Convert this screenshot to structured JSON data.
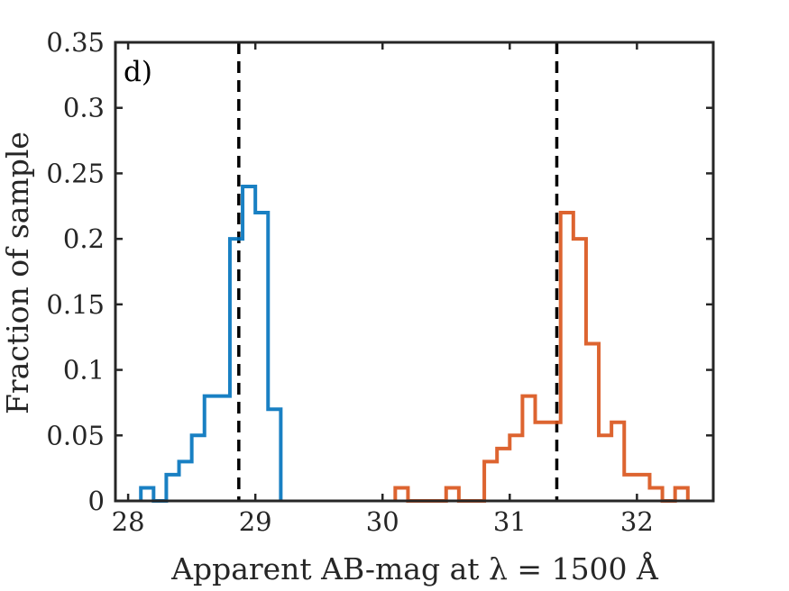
{
  "chart_data": {
    "type": "histogram",
    "panel_label": "d)",
    "xlabel": "Apparent AB-mag at λ = 1500 Å",
    "ylabel": "Fraction of sample",
    "xlim": [
      27.9,
      32.6
    ],
    "ylim": [
      0,
      0.35
    ],
    "xticks": [
      28,
      29,
      30,
      31,
      32
    ],
    "xtick_labels": [
      "28",
      "29",
      "30",
      "31",
      "32"
    ],
    "yticks": [
      0,
      0.05,
      0.1,
      0.15,
      0.2,
      0.25,
      0.3,
      0.35
    ],
    "ytick_labels": [
      "0",
      "0.05",
      "0.1",
      "0.15",
      "0.2",
      "0.25",
      "0.3",
      "0.35"
    ],
    "bin_width": 0.1,
    "series": [
      {
        "name": "blue",
        "color": "#0072BD",
        "bin_start": 28.1,
        "values": [
          0.01,
          0,
          0.02,
          0.03,
          0.05,
          0.08,
          0.08,
          0.2,
          0.24,
          0.22,
          0.07
        ]
      },
      {
        "name": "orange",
        "color": "#D95319",
        "bin_start": 30.1,
        "values": [
          0.01,
          0,
          0,
          0,
          0.01,
          0,
          0,
          0.03,
          0.04,
          0.05,
          0.08,
          0.06,
          0.06,
          0.22,
          0.2,
          0.12,
          0.05,
          0.06,
          0.02,
          0.02,
          0.01,
          0,
          0.01
        ]
      }
    ],
    "vlines": [
      {
        "x": 28.87,
        "style": "dashed",
        "color": "#000000"
      },
      {
        "x": 31.37,
        "style": "dashed",
        "color": "#000000"
      }
    ]
  }
}
